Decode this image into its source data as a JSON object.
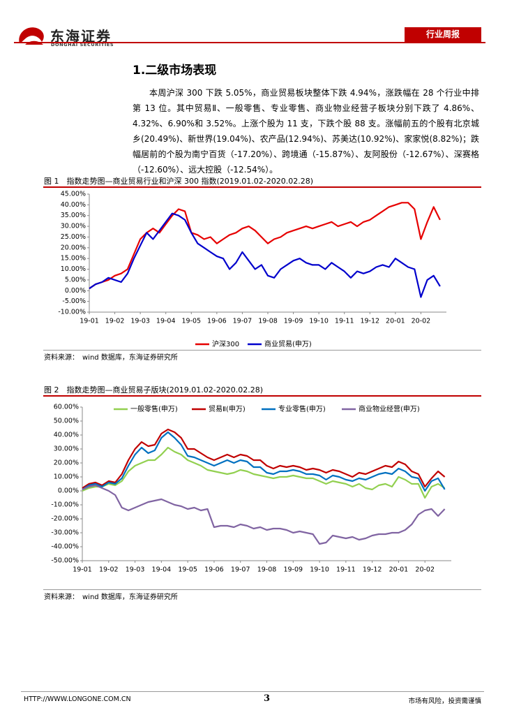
{
  "header": {
    "brand": "东海证券",
    "brand_en": "DONGHAI SECURITIES",
    "tab": "行业周报"
  },
  "section": {
    "title": "1.二级市场表现",
    "paragraph": "本周沪深 300 下跌 5.05%，商业贸易板块整体下跌 4.94%，涨跌幅在 28 个行业中排第 13 位。其中贸易Ⅱ、一般零售、专业零售、商业物业经营子板块分别下跌了 4.86%、4.32%、6.90%和 3.52%。上涨个股为 11 支，下跌个股 88 支。涨幅前五的个股有北京城乡(20.49%)、新世界(19.04%)、农产品(12.94%)、苏美达(10.92%)、家家悦(8.82%)；跌幅居前的个股为南宁百货（-17.20%）、跨境通（-15.87%）、友阿股份（-12.67%）、深赛格（-12.60%）、远大控股（-12.54%）。"
  },
  "chart_data": [
    {
      "type": "line",
      "title": "图 1　指数走势图—商业贸易行业和沪深 300 指数(2019.01.02-2020.02.28)",
      "source": "资料来源：　wind 数据库，东海证券研究所",
      "legend": "bottom",
      "grid": false,
      "categories": [
        "19-01",
        null,
        null,
        null,
        "19-02",
        null,
        null,
        null,
        "19-03",
        null,
        null,
        null,
        "19-04",
        null,
        null,
        null,
        "19-05",
        null,
        null,
        null,
        "19-06",
        null,
        null,
        null,
        "19-07",
        null,
        null,
        null,
        "19-08",
        null,
        null,
        null,
        "19-09",
        null,
        null,
        null,
        "19-10",
        null,
        null,
        null,
        "19-11",
        null,
        null,
        null,
        "19-12",
        null,
        null,
        null,
        "20-01",
        null,
        null,
        null,
        "20-02",
        null,
        null,
        null
      ],
      "ylim": [
        -10,
        45
      ],
      "yticks": [
        {
          "value": -10,
          "label": "-10.00%"
        },
        {
          "value": -5,
          "label": "-5.00%"
        },
        {
          "value": 0,
          "label": "0.00%"
        },
        {
          "value": 5,
          "label": "5.00%"
        },
        {
          "value": 10,
          "label": "10.00%"
        },
        {
          "value": 15,
          "label": "15.00%"
        },
        {
          "value": 20,
          "label": "20.00%"
        },
        {
          "value": 25,
          "label": "25.00%"
        },
        {
          "value": 30,
          "label": "30.00%"
        },
        {
          "value": 35,
          "label": "35.00%"
        },
        {
          "value": 40,
          "label": "40.00%"
        },
        {
          "value": 45,
          "label": "45.00%"
        }
      ],
      "series": [
        {
          "name": "沪深300",
          "color": "#e60000",
          "values": [
            1,
            3,
            4,
            5,
            7,
            8,
            10,
            17,
            24,
            27,
            29,
            27,
            31,
            35,
            38,
            37,
            27,
            26,
            24,
            25,
            22,
            24,
            26,
            27,
            29,
            30,
            28,
            25,
            22,
            24,
            25,
            27,
            28,
            29,
            30,
            29,
            30,
            31,
            32,
            30,
            31,
            32,
            30,
            32,
            33,
            35,
            37,
            39,
            40,
            41,
            41,
            38,
            24,
            32,
            39,
            33
          ]
        },
        {
          "name": "商业贸易(申万)",
          "color": "#0000cc",
          "values": [
            1,
            3,
            4,
            6,
            5,
            4,
            8,
            15,
            21,
            27,
            24,
            28,
            32,
            36,
            35,
            33,
            27,
            22,
            20,
            18,
            16,
            15,
            10,
            13,
            18,
            14,
            10,
            12,
            7,
            6,
            10,
            12,
            14,
            15,
            13,
            12,
            12,
            10,
            13,
            11,
            9,
            6,
            9,
            8,
            9,
            11,
            12,
            11,
            15,
            13,
            11,
            10,
            -3,
            5,
            7,
            2
          ]
        }
      ]
    },
    {
      "type": "line",
      "title": "图 2　指数走势图—商业贸易子版块(2019.01.02-2020.02.28)",
      "source": "资料来源：　wind 数据库，东海证券研究所",
      "legend": "top",
      "grid": false,
      "categories": [
        "19-01",
        null,
        null,
        null,
        "19-02",
        null,
        null,
        null,
        "19-03",
        null,
        null,
        null,
        "19-04",
        null,
        null,
        null,
        "19-05",
        null,
        null,
        null,
        "19-06",
        null,
        null,
        null,
        "19-07",
        null,
        null,
        null,
        "19-08",
        null,
        null,
        null,
        "19-09",
        null,
        null,
        null,
        "19-10",
        null,
        null,
        null,
        "19-11",
        null,
        null,
        null,
        "19-12",
        null,
        null,
        null,
        "20-01",
        null,
        null,
        null,
        "20-02",
        null,
        null,
        null
      ],
      "ylim": [
        -50,
        60
      ],
      "yticks": [
        {
          "value": -50,
          "label": "-50.00%"
        },
        {
          "value": -40,
          "label": "-40.00%"
        },
        {
          "value": -30,
          "label": "-30.00%"
        },
        {
          "value": -20,
          "label": "-20.00%"
        },
        {
          "value": -10,
          "label": "-10.00%"
        },
        {
          "value": 0,
          "label": "0.00%"
        },
        {
          "value": 10,
          "label": "10.00%"
        },
        {
          "value": 20,
          "label": "20.00%"
        },
        {
          "value": 30,
          "label": "30.00%"
        },
        {
          "value": 40,
          "label": "40.00%"
        },
        {
          "value": 50,
          "label": "50.00%"
        },
        {
          "value": 60,
          "label": "60.00%"
        }
      ],
      "series": [
        {
          "name": "一般零售(申万)",
          "color": "#92d050",
          "values": [
            0,
            2,
            3,
            3,
            5,
            4,
            7,
            14,
            18,
            20,
            22,
            22,
            26,
            31,
            28,
            26,
            22,
            20,
            18,
            15,
            14,
            13,
            12,
            13,
            15,
            14,
            12,
            11,
            10,
            9,
            10,
            10,
            11,
            10,
            9,
            9,
            7,
            5,
            7,
            6,
            5,
            3,
            5,
            2,
            1,
            4,
            5,
            3,
            10,
            8,
            5,
            5,
            -5,
            3,
            5,
            2
          ]
        },
        {
          "name": "贸易Ⅱ(申万)",
          "color": "#c00000",
          "values": [
            2,
            5,
            6,
            4,
            7,
            6,
            12,
            22,
            30,
            35,
            32,
            33,
            41,
            44,
            42,
            38,
            30,
            30,
            27,
            24,
            22,
            24,
            26,
            24,
            26,
            25,
            22,
            22,
            18,
            16,
            18,
            17,
            18,
            17,
            15,
            16,
            15,
            13,
            15,
            14,
            12,
            10,
            13,
            12,
            14,
            16,
            18,
            17,
            21,
            19,
            14,
            12,
            3,
            9,
            14,
            10
          ]
        },
        {
          "name": "专业零售(申万)",
          "color": "#0070c0",
          "values": [
            1,
            4,
            5,
            3,
            6,
            5,
            9,
            18,
            26,
            31,
            27,
            29,
            38,
            42,
            38,
            33,
            25,
            24,
            22,
            20,
            18,
            20,
            22,
            20,
            22,
            21,
            17,
            17,
            13,
            12,
            14,
            14,
            15,
            14,
            12,
            12,
            11,
            8,
            11,
            10,
            8,
            7,
            9,
            8,
            10,
            12,
            13,
            12,
            16,
            14,
            10,
            9,
            0,
            7,
            9,
            1
          ]
        },
        {
          "name": "商业物业经营(申万)",
          "color": "#8064a2",
          "values": [
            1,
            3,
            4,
            2,
            0,
            -3,
            -12,
            -14,
            -12,
            -10,
            -8,
            -7,
            -6,
            -8,
            -10,
            -11,
            -13,
            -12,
            -14,
            -13,
            -26,
            -25,
            -25,
            -26,
            -24,
            -25,
            -27,
            -26,
            -28,
            -27,
            -27,
            -28,
            -30,
            -29,
            -30,
            -31,
            -38,
            -37,
            -32,
            -33,
            -34,
            -33,
            -35,
            -34,
            -32,
            -31,
            -31,
            -30,
            -30,
            -28,
            -24,
            -17,
            -14,
            -13,
            -18,
            -13
          ]
        }
      ]
    }
  ],
  "footer": {
    "url": "HTTP://WWW.LONGONE.COM.CN",
    "page": "3",
    "note": "市场有风险，投资需谨慎"
  }
}
